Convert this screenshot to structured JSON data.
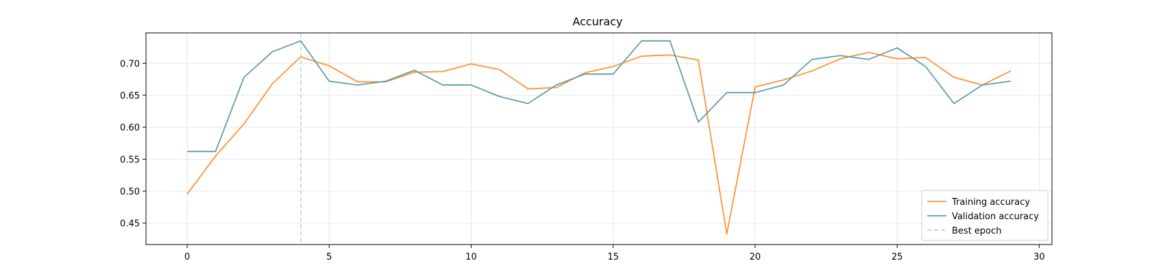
{
  "chart_data": {
    "type": "line",
    "title": "Accuracy",
    "xlabel": "",
    "ylabel": "",
    "xlim": [
      -1.45,
      30.45
    ],
    "ylim": [
      0.4165,
      0.7475
    ],
    "x_ticks": [
      0,
      5,
      10,
      15,
      20,
      25,
      30
    ],
    "y_ticks": [
      0.45,
      0.5,
      0.55,
      0.6,
      0.65,
      0.7
    ],
    "grid": true,
    "legend_position": "lower-right",
    "x": [
      0,
      1,
      2,
      3,
      4,
      5,
      6,
      7,
      8,
      9,
      10,
      11,
      12,
      13,
      14,
      15,
      16,
      17,
      18,
      19,
      20,
      21,
      22,
      23,
      24,
      25,
      26,
      27,
      28,
      29
    ],
    "series": [
      {
        "name": "Training accuracy",
        "color": "#ff9234",
        "values": [
          0.495,
          0.555,
          0.605,
          0.668,
          0.71,
          0.696,
          0.671,
          0.671,
          0.686,
          0.687,
          0.699,
          0.69,
          0.66,
          0.662,
          0.685,
          0.695,
          0.711,
          0.713,
          0.705,
          0.433,
          0.663,
          0.674,
          0.688,
          0.707,
          0.717,
          0.707,
          0.709,
          0.678,
          0.666,
          0.688
        ]
      },
      {
        "name": "Validation accuracy",
        "color": "#5f9ea8",
        "values": [
          0.562,
          0.562,
          0.678,
          0.718,
          0.735,
          0.672,
          0.666,
          0.672,
          0.689,
          0.666,
          0.666,
          0.648,
          0.637,
          0.666,
          0.683,
          0.683,
          0.735,
          0.735,
          0.608,
          0.654,
          0.654,
          0.666,
          0.706,
          0.712,
          0.706,
          0.724,
          0.695,
          0.637,
          0.666,
          0.672
        ]
      }
    ],
    "markers": [
      {
        "name": "Best epoch",
        "x": 4,
        "color": "#a9d6d8",
        "style": "dashed"
      }
    ]
  }
}
